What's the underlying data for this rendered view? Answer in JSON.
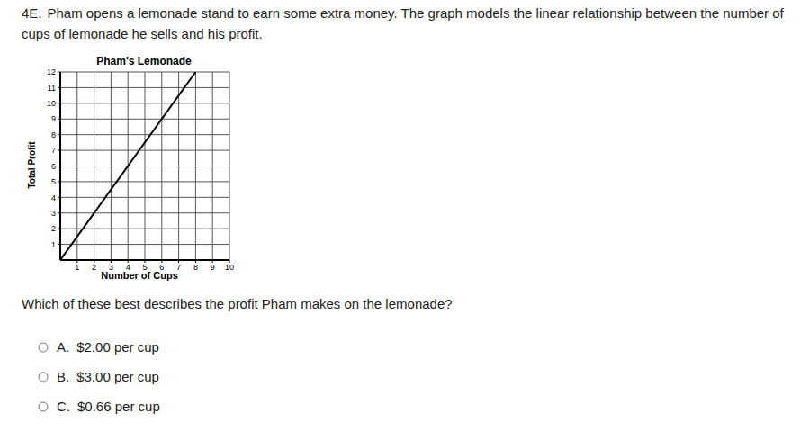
{
  "question_number": "4E.",
  "intro": "Pham opens a lemonade stand to earn some extra money.  The graph models the linear relationship between the number of cups of lemonade he sells and his profit.",
  "chart_data": {
    "type": "line",
    "title": "Pham's Lemonade",
    "x_label": "Number of Cups",
    "y_label": "Total Profit",
    "x": [
      0,
      8
    ],
    "values": [
      0,
      12
    ],
    "color": "#000000",
    "xlim": [
      0,
      10
    ],
    "ylim": [
      0,
      12
    ],
    "xticks": [
      1,
      2,
      3,
      4,
      5,
      6,
      7,
      8,
      9,
      10
    ],
    "yticks": [
      1,
      2,
      3,
      4,
      5,
      6,
      7,
      8,
      9,
      10,
      11,
      12
    ],
    "grid": true
  },
  "question": "Which of these best describes the profit Pham makes on the lemonade?",
  "options": [
    {
      "letter": "A.",
      "text": "$2.00 per cup"
    },
    {
      "letter": "B.",
      "text": "$3.00 per cup"
    },
    {
      "letter": "C.",
      "text": "$0.66 per cup"
    }
  ]
}
